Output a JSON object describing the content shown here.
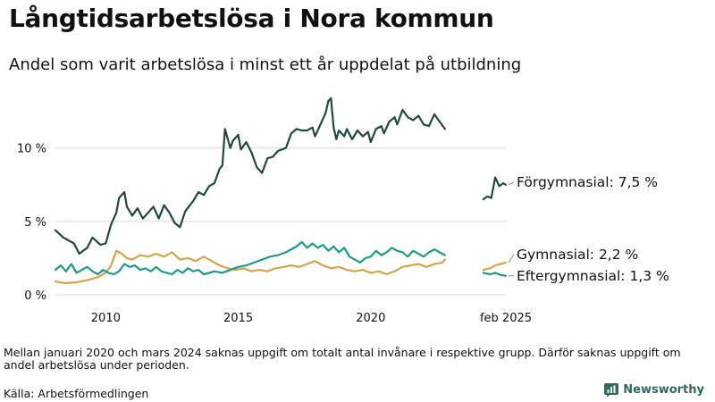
{
  "title": "Långtidsarbetslösa i Nora kommun",
  "subtitle": "Andel som varit arbetslösa i minst ett år uppdelat på utbildning",
  "note": "Mellan januari 2020 och mars 2024 saknas uppgift om totalt antal invånare i respektive grupp. Därför saknas uppgift om andel arbetslösa under perioden.",
  "source": "Källa: Arbetsförmedlingen",
  "brand": "Newsworthy",
  "colors": {
    "forgymnasial": "#1f4a3c",
    "gymnasial": "#d4a447",
    "eftergymnasial": "#1f9a88",
    "grid": "#d9d9d9"
  },
  "chart_data": {
    "type": "line",
    "y_unit": "%",
    "ylim": [
      0,
      14
    ],
    "y_ticks": [
      {
        "value": 0,
        "label": "0 %"
      },
      {
        "value": 5,
        "label": "5 %"
      },
      {
        "value": 10,
        "label": "10 %"
      }
    ],
    "x_ticks": [
      {
        "value": 2010,
        "label": "2010"
      },
      {
        "value": 2015,
        "label": "2015"
      },
      {
        "value": 2020,
        "label": "2020"
      },
      {
        "value": 2025.1,
        "label": "feb 2025"
      }
    ],
    "grid": "horizontal",
    "series": [
      {
        "name": "Förgymnasial",
        "label": "Förgymnasial: 7,5 %",
        "color": "#1f4a3c",
        "segments": [
          [
            [
              2008.1,
              4.4
            ],
            [
              2008.4,
              3.9
            ],
            [
              2008.8,
              3.5
            ],
            [
              2009.0,
              2.8
            ],
            [
              2009.3,
              3.2
            ],
            [
              2009.5,
              3.9
            ],
            [
              2009.8,
              3.4
            ],
            [
              2010.0,
              3.5
            ],
            [
              2010.2,
              4.8
            ],
            [
              2010.4,
              5.6
            ],
            [
              2010.5,
              6.6
            ],
            [
              2010.7,
              7.0
            ],
            [
              2010.8,
              6.0
            ],
            [
              2011.0,
              5.4
            ],
            [
              2011.2,
              5.9
            ],
            [
              2011.4,
              5.2
            ],
            [
              2011.6,
              5.6
            ],
            [
              2011.8,
              6.0
            ],
            [
              2012.0,
              5.2
            ],
            [
              2012.2,
              6.1
            ],
            [
              2012.4,
              5.6
            ],
            [
              2012.6,
              4.9
            ],
            [
              2012.8,
              4.6
            ],
            [
              2013.0,
              5.7
            ],
            [
              2013.3,
              6.4
            ],
            [
              2013.5,
              7.0
            ],
            [
              2013.7,
              6.8
            ],
            [
              2013.9,
              7.4
            ],
            [
              2014.1,
              7.6
            ],
            [
              2014.3,
              8.6
            ],
            [
              2014.4,
              8.8
            ],
            [
              2014.5,
              11.3
            ],
            [
              2014.7,
              10.0
            ],
            [
              2014.8,
              10.5
            ],
            [
              2015.0,
              10.9
            ],
            [
              2015.1,
              9.9
            ],
            [
              2015.3,
              10.4
            ],
            [
              2015.5,
              9.7
            ],
            [
              2015.7,
              8.7
            ],
            [
              2015.9,
              8.3
            ],
            [
              2016.1,
              9.3
            ],
            [
              2016.3,
              9.4
            ],
            [
              2016.5,
              9.8
            ],
            [
              2016.8,
              10.0
            ],
            [
              2017.0,
              11.0
            ],
            [
              2017.2,
              11.3
            ],
            [
              2017.4,
              11.2
            ],
            [
              2017.6,
              11.2
            ],
            [
              2017.8,
              11.4
            ],
            [
              2017.9,
              10.8
            ],
            [
              2018.1,
              11.6
            ],
            [
              2018.3,
              12.4
            ],
            [
              2018.4,
              13.2
            ],
            [
              2018.5,
              13.4
            ],
            [
              2018.6,
              11.4
            ],
            [
              2018.7,
              10.6
            ],
            [
              2018.8,
              11.2
            ],
            [
              2019.0,
              10.8
            ],
            [
              2019.1,
              11.3
            ],
            [
              2019.3,
              10.6
            ],
            [
              2019.5,
              11.2
            ],
            [
              2019.7,
              10.8
            ],
            [
              2019.9,
              11.1
            ],
            [
              2020.0,
              10.4
            ],
            [
              2020.2,
              11.3
            ],
            [
              2020.4,
              11.5
            ],
            [
              2020.5,
              11.0
            ],
            [
              2020.7,
              11.8
            ],
            [
              2020.9,
              12.1
            ],
            [
              2021.0,
              11.6
            ],
            [
              2021.2,
              12.6
            ],
            [
              2021.4,
              12.1
            ],
            [
              2021.6,
              11.9
            ],
            [
              2021.8,
              12.2
            ],
            [
              2022.0,
              11.6
            ],
            [
              2022.2,
              11.5
            ],
            [
              2022.4,
              12.3
            ],
            [
              2022.6,
              11.8
            ],
            [
              2022.8,
              11.3
            ]
          ],
          [
            [
              2024.25,
              6.5
            ],
            [
              2024.4,
              6.7
            ],
            [
              2024.55,
              6.6
            ],
            [
              2024.7,
              8.0
            ],
            [
              2024.85,
              7.4
            ],
            [
              2025.0,
              7.6
            ],
            [
              2025.1,
              7.5
            ]
          ]
        ]
      },
      {
        "name": "Gymnasial",
        "label": "Gymnasial: 2,2 %",
        "color": "#d4a447",
        "segments": [
          [
            [
              2008.1,
              0.9
            ],
            [
              2008.5,
              0.8
            ],
            [
              2008.9,
              0.85
            ],
            [
              2009.3,
              1.0
            ],
            [
              2009.7,
              1.2
            ],
            [
              2010.0,
              1.5
            ],
            [
              2010.2,
              2.0
            ],
            [
              2010.4,
              3.0
            ],
            [
              2010.6,
              2.8
            ],
            [
              2010.8,
              2.5
            ],
            [
              2011.0,
              2.4
            ],
            [
              2011.3,
              2.7
            ],
            [
              2011.6,
              2.6
            ],
            [
              2011.9,
              2.8
            ],
            [
              2012.2,
              2.6
            ],
            [
              2012.5,
              2.9
            ],
            [
              2012.8,
              2.4
            ],
            [
              2013.1,
              2.5
            ],
            [
              2013.4,
              2.3
            ],
            [
              2013.7,
              2.6
            ],
            [
              2014.0,
              2.3
            ],
            [
              2014.3,
              2.0
            ],
            [
              2014.6,
              1.8
            ],
            [
              2014.9,
              1.7
            ],
            [
              2015.2,
              1.8
            ],
            [
              2015.5,
              1.6
            ],
            [
              2015.8,
              1.7
            ],
            [
              2016.1,
              1.6
            ],
            [
              2016.4,
              1.8
            ],
            [
              2016.7,
              1.9
            ],
            [
              2017.0,
              2.0
            ],
            [
              2017.3,
              1.9
            ],
            [
              2017.6,
              2.1
            ],
            [
              2017.9,
              2.3
            ],
            [
              2018.2,
              2.0
            ],
            [
              2018.5,
              1.8
            ],
            [
              2018.8,
              1.9
            ],
            [
              2019.1,
              1.7
            ],
            [
              2019.4,
              1.6
            ],
            [
              2019.7,
              1.7
            ],
            [
              2020.0,
              1.5
            ],
            [
              2020.3,
              1.6
            ],
            [
              2020.6,
              1.4
            ],
            [
              2020.9,
              1.6
            ],
            [
              2021.2,
              1.9
            ],
            [
              2021.5,
              2.0
            ],
            [
              2021.8,
              2.1
            ],
            [
              2022.1,
              1.9
            ],
            [
              2022.4,
              2.1
            ],
            [
              2022.7,
              2.2
            ],
            [
              2022.8,
              2.4
            ]
          ],
          [
            [
              2024.25,
              1.7
            ],
            [
              2024.5,
              1.8
            ],
            [
              2024.7,
              2.0
            ],
            [
              2024.9,
              2.1
            ],
            [
              2025.1,
              2.2
            ]
          ]
        ]
      },
      {
        "name": "Eftergymnasial",
        "label": "Eftergymnasial: 1,3 %",
        "color": "#1f9a88",
        "segments": [
          [
            [
              2008.1,
              1.7
            ],
            [
              2008.3,
              2.0
            ],
            [
              2008.5,
              1.6
            ],
            [
              2008.7,
              2.1
            ],
            [
              2008.9,
              1.5
            ],
            [
              2009.1,
              1.7
            ],
            [
              2009.3,
              1.9
            ],
            [
              2009.5,
              1.6
            ],
            [
              2009.7,
              1.4
            ],
            [
              2009.9,
              1.7
            ],
            [
              2010.1,
              1.5
            ],
            [
              2010.3,
              1.4
            ],
            [
              2010.5,
              1.6
            ],
            [
              2010.7,
              2.1
            ],
            [
              2010.9,
              1.9
            ],
            [
              2011.1,
              2.0
            ],
            [
              2011.3,
              1.7
            ],
            [
              2011.5,
              1.8
            ],
            [
              2011.7,
              1.6
            ],
            [
              2011.9,
              1.9
            ],
            [
              2012.1,
              1.6
            ],
            [
              2012.3,
              1.5
            ],
            [
              2012.5,
              1.4
            ],
            [
              2012.7,
              1.7
            ],
            [
              2012.9,
              1.5
            ],
            [
              2013.1,
              1.8
            ],
            [
              2013.3,
              1.6
            ],
            [
              2013.5,
              1.7
            ],
            [
              2013.7,
              1.4
            ],
            [
              2013.9,
              1.5
            ],
            [
              2014.1,
              1.6
            ],
            [
              2014.4,
              1.5
            ],
            [
              2014.7,
              1.7
            ],
            [
              2015.0,
              1.9
            ],
            [
              2015.3,
              2.0
            ],
            [
              2015.6,
              2.2
            ],
            [
              2015.9,
              2.4
            ],
            [
              2016.2,
              2.6
            ],
            [
              2016.5,
              2.7
            ],
            [
              2016.8,
              2.9
            ],
            [
              2017.0,
              3.1
            ],
            [
              2017.2,
              3.3
            ],
            [
              2017.4,
              3.6
            ],
            [
              2017.6,
              3.2
            ],
            [
              2017.8,
              3.5
            ],
            [
              2018.0,
              3.2
            ],
            [
              2018.2,
              3.4
            ],
            [
              2018.4,
              3.0
            ],
            [
              2018.6,
              3.3
            ],
            [
              2018.8,
              2.9
            ],
            [
              2019.0,
              3.2
            ],
            [
              2019.2,
              2.6
            ],
            [
              2019.4,
              2.4
            ],
            [
              2019.6,
              2.2
            ],
            [
              2019.8,
              2.5
            ],
            [
              2020.0,
              2.6
            ],
            [
              2020.2,
              3.0
            ],
            [
              2020.4,
              2.7
            ],
            [
              2020.6,
              2.9
            ],
            [
              2020.8,
              3.2
            ],
            [
              2021.0,
              3.0
            ],
            [
              2021.2,
              2.9
            ],
            [
              2021.4,
              2.6
            ],
            [
              2021.6,
              3.0
            ],
            [
              2021.8,
              2.8
            ],
            [
              2022.0,
              2.6
            ],
            [
              2022.2,
              2.9
            ],
            [
              2022.4,
              3.1
            ],
            [
              2022.6,
              2.9
            ],
            [
              2022.8,
              2.7
            ]
          ],
          [
            [
              2024.25,
              1.5
            ],
            [
              2024.5,
              1.4
            ],
            [
              2024.7,
              1.5
            ],
            [
              2024.9,
              1.35
            ],
            [
              2025.1,
              1.3
            ]
          ]
        ]
      }
    ]
  }
}
